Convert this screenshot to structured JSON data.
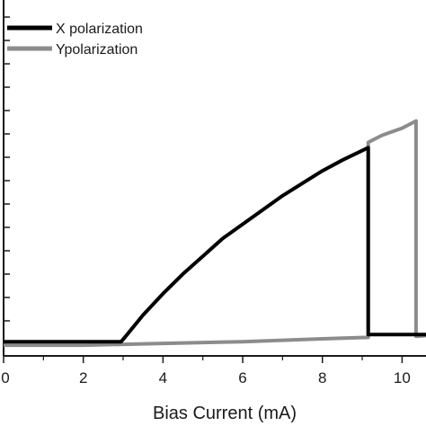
{
  "chart_data": {
    "type": "line",
    "xlabel": "Bias Current (mA)",
    "ylabel": "",
    "xlim": [
      0,
      10.6
    ],
    "ylim": [
      0,
      1.0
    ],
    "x_ticks": [
      "0",
      "2",
      "4",
      "6",
      "8",
      "10"
    ],
    "y_ticks_labeled": false,
    "grid": false,
    "legend_position": "top-left",
    "series": [
      {
        "name": "X polarization",
        "color": "#000000",
        "x": [
          0,
          1,
          2,
          2.95,
          3.1,
          3.5,
          4,
          4.5,
          5,
          5.5,
          6,
          6.5,
          7,
          7.5,
          8,
          8.5,
          9.15,
          9.15,
          9.5,
          10,
          10.6
        ],
        "y": [
          0.04,
          0.04,
          0.04,
          0.04,
          0.06,
          0.115,
          0.175,
          0.23,
          0.28,
          0.33,
          0.37,
          0.41,
          0.45,
          0.485,
          0.52,
          0.55,
          0.585,
          0.06,
          0.06,
          0.06,
          0.06
        ]
      },
      {
        "name": "Ypolarization",
        "color": "#8c8c8c",
        "x": [
          0,
          2,
          4,
          6,
          8,
          9.15,
          9.15,
          9.5,
          10,
          10.35,
          10.35,
          10.6
        ],
        "y": [
          0.03,
          0.03,
          0.035,
          0.04,
          0.048,
          0.052,
          0.6,
          0.62,
          0.64,
          0.66,
          0.055,
          0.057
        ]
      }
    ]
  }
}
